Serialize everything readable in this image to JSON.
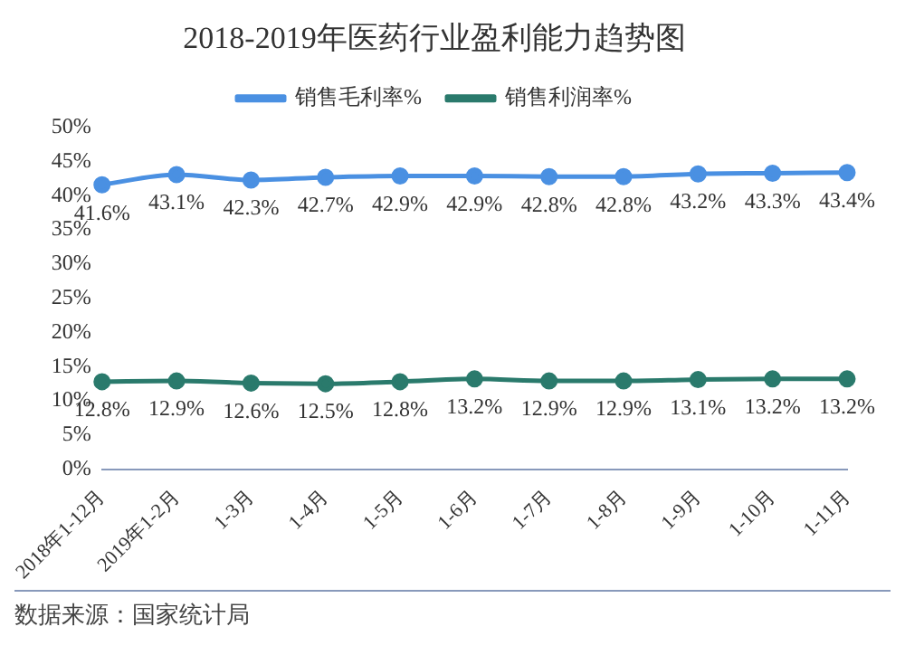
{
  "chart_data": {
    "type": "line",
    "title": "2018-2019年医药行业盈利能力趋势图",
    "categories": [
      "2018年1-12月",
      "2019年1-2月",
      "1-3月",
      "1-4月",
      "1-5月",
      "1-6月",
      "1-7月",
      "1-8月",
      "1-9月",
      "1-10月",
      "1-11月"
    ],
    "series": [
      {
        "name": "销售毛利率%",
        "color": "#4a90e2",
        "values": [
          41.6,
          43.1,
          42.3,
          42.7,
          42.9,
          42.9,
          42.8,
          42.8,
          43.2,
          43.3,
          43.4
        ],
        "value_labels": [
          "41.6%",
          "43.1%",
          "42.3%",
          "42.7%",
          "42.9%",
          "42.9%",
          "42.8%",
          "42.8%",
          "43.2%",
          "43.3%",
          "43.4%"
        ]
      },
      {
        "name": "销售利润率%",
        "color": "#2a7a6c",
        "values": [
          12.8,
          12.9,
          12.6,
          12.5,
          12.8,
          13.2,
          12.9,
          12.9,
          13.1,
          13.2,
          13.2
        ],
        "value_labels": [
          "12.8%",
          "12.9%",
          "12.6%",
          "12.5%",
          "12.8%",
          "13.2%",
          "12.9%",
          "12.9%",
          "13.1%",
          "13.2%",
          "13.2%"
        ]
      }
    ],
    "ylim": [
      0,
      50
    ],
    "yticks": [
      {
        "value": 0,
        "label": "0%"
      },
      {
        "value": 5,
        "label": "5%"
      },
      {
        "value": 10,
        "label": "10%"
      },
      {
        "value": 15,
        "label": "15%"
      },
      {
        "value": 20,
        "label": "20%"
      },
      {
        "value": 25,
        "label": "25%"
      },
      {
        "value": 30,
        "label": "30%"
      },
      {
        "value": 35,
        "label": "35%"
      },
      {
        "value": 40,
        "label": "40%"
      },
      {
        "value": 45,
        "label": "45%"
      },
      {
        "value": 50,
        "label": "50%"
      }
    ],
    "grid": false,
    "legend": "top",
    "marker": "circle",
    "line_style": "solid",
    "annotations": [
      "数据来源：国家统计局"
    ]
  }
}
